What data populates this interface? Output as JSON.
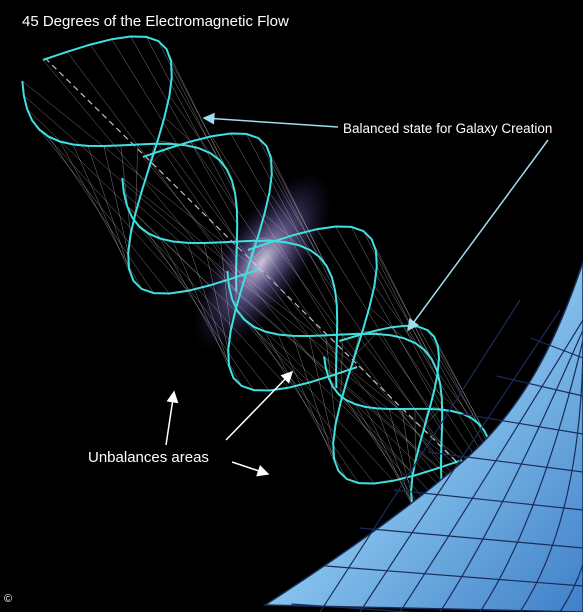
{
  "title": "45 Degrees of the Electromagnetic Flow",
  "annotations": {
    "balanced": "Balanced state for Galaxy Creation",
    "unbalanced": "Unbalances areas"
  },
  "copyright": "©",
  "colors": {
    "background": "#000000",
    "wave_edge": "#3fe0e0",
    "mesh": "#d8d8d8",
    "glow": "#8a7dd8",
    "funnel": "#8fd0f5",
    "arrow": "#7fcfe8",
    "text": "#ffffff"
  }
}
